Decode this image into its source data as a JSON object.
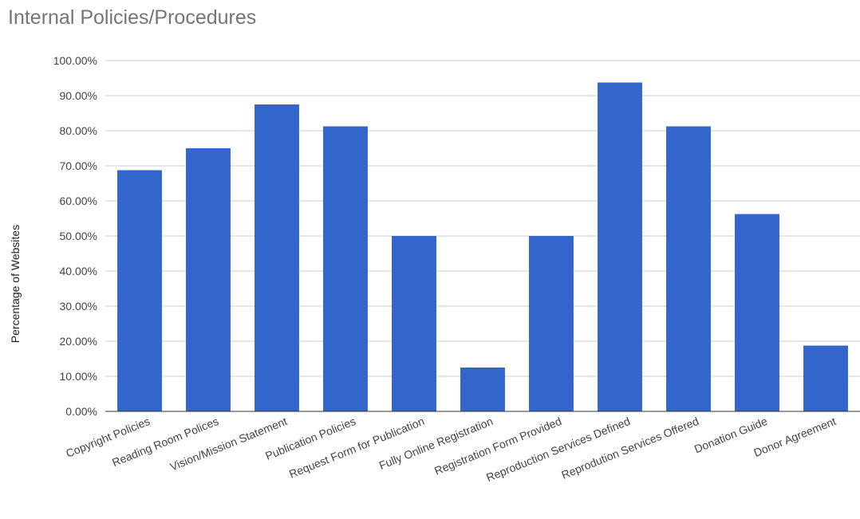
{
  "chart_data": {
    "type": "bar",
    "title": "Internal Policies/Procedures",
    "xlabel": "",
    "ylabel": "Percentage of Websites",
    "ylim": [
      0,
      100
    ],
    "yticks": [
      "0.00%",
      "10.00%",
      "20.00%",
      "30.00%",
      "40.00%",
      "50.00%",
      "60.00%",
      "70.00%",
      "80.00%",
      "90.00%",
      "100.00%"
    ],
    "categories": [
      "Copyright Policies",
      "Reading Room Polices",
      "Vision/Mission Statement",
      "Publication Policies",
      "Request Form for Publication",
      "Fully Online Registration",
      "Registration Form Provided",
      "Reproduction Services Defined",
      "Reprodution Services Offered",
      "Donation Guide",
      "Donor Agreement"
    ],
    "values": [
      68.75,
      75.0,
      87.5,
      81.25,
      50.0,
      12.5,
      50.0,
      93.75,
      81.25,
      56.25,
      18.75
    ],
    "grid": true,
    "legend": "none",
    "bar_color": "#3366cc"
  }
}
